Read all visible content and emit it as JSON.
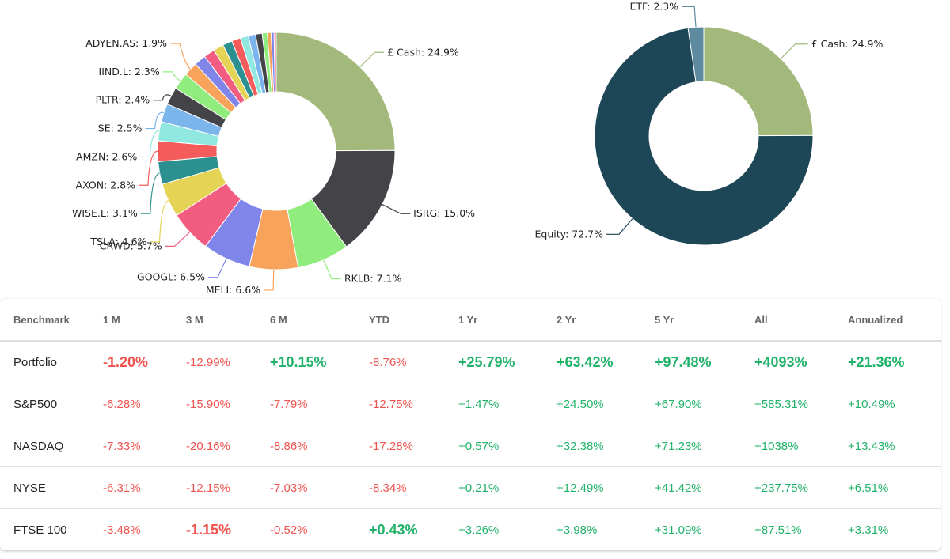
{
  "chart_data": [
    {
      "type": "pie",
      "donut": true,
      "slices": [
        {
          "label": "£ Cash: 24.9%",
          "value": 24.9,
          "color": "#a3b97b"
        },
        {
          "label": "ISRG: 15.0%",
          "value": 15.0,
          "color": "#434348"
        },
        {
          "label": "RKLB: 7.1%",
          "value": 7.1,
          "color": "#90ed7d"
        },
        {
          "label": "MELI: 6.6%",
          "value": 6.6,
          "color": "#f7a35c"
        },
        {
          "label": "GOOGL: 6.5%",
          "value": 6.5,
          "color": "#8085e9"
        },
        {
          "label": "CRWD: 5.7%",
          "value": 5.7,
          "color": "#f15c80"
        },
        {
          "label": "TSLA: 4.6%",
          "value": 4.6,
          "color": "#e4d354"
        },
        {
          "label": "WISE.L: 3.1%",
          "value": 3.1,
          "color": "#2b908f"
        },
        {
          "label": "AXON: 2.8%",
          "value": 2.8,
          "color": "#f45b5b"
        },
        {
          "label": "AMZN: 2.6%",
          "value": 2.6,
          "color": "#91e8e1"
        },
        {
          "label": "SE: 2.5%",
          "value": 2.5,
          "color": "#7cb5ec"
        },
        {
          "label": "PLTR: 2.4%",
          "value": 2.4,
          "color": "#434348"
        },
        {
          "label": "IIND.L: 2.3%",
          "value": 2.3,
          "color": "#90ed7d"
        },
        {
          "label": "ADYEN.AS: 1.9%",
          "value": 1.9,
          "color": "#f7a35c"
        },
        {
          "label": "",
          "value": 1.6,
          "color": "#8085e9"
        },
        {
          "label": "",
          "value": 1.5,
          "color": "#f15c80"
        },
        {
          "label": "",
          "value": 1.4,
          "color": "#e4d354"
        },
        {
          "label": "",
          "value": 1.3,
          "color": "#2b908f"
        },
        {
          "label": "",
          "value": 1.2,
          "color": "#f45b5b"
        },
        {
          "label": "",
          "value": 1.1,
          "color": "#91e8e1"
        },
        {
          "label": "",
          "value": 1.0,
          "color": "#7cb5ec"
        },
        {
          "label": "",
          "value": 0.9,
          "color": "#434348"
        },
        {
          "label": "",
          "value": 0.7,
          "color": "#90ed7d"
        },
        {
          "label": "",
          "value": 0.5,
          "color": "#f7a35c"
        },
        {
          "label": "",
          "value": 0.4,
          "color": "#8085e9"
        },
        {
          "label": "",
          "value": 0.3,
          "color": "#f15c80"
        }
      ]
    },
    {
      "type": "pie",
      "donut": true,
      "slices": [
        {
          "label": "£ Cash: 24.9%",
          "value": 24.9,
          "color": "#a3b97b"
        },
        {
          "label": "Equity: 72.7%",
          "value": 72.7,
          "color": "#1d4757"
        },
        {
          "label": "ETF: 2.3%",
          "value": 2.3,
          "color": "#5d8a9f"
        }
      ]
    }
  ],
  "table": {
    "headers": [
      "Benchmark",
      "1 M",
      "3 M",
      "6 M",
      "YTD",
      "1 Yr",
      "2 Yr",
      "5 Yr",
      "All",
      "Annualized"
    ],
    "rows": [
      {
        "name": "Portfolio",
        "cells": [
          {
            "text": "-1.20%",
            "tone": "neg",
            "bold": true
          },
          {
            "text": "-12.99%",
            "tone": "neg",
            "bold": false
          },
          {
            "text": "+10.15%",
            "tone": "pos",
            "bold": true
          },
          {
            "text": "-8.76%",
            "tone": "neg",
            "bold": false
          },
          {
            "text": "+25.79%",
            "tone": "pos",
            "bold": true
          },
          {
            "text": "+63.42%",
            "tone": "pos",
            "bold": true
          },
          {
            "text": "+97.48%",
            "tone": "pos",
            "bold": true
          },
          {
            "text": "+4093%",
            "tone": "pos",
            "bold": true
          },
          {
            "text": "+21.36%",
            "tone": "pos",
            "bold": true
          }
        ]
      },
      {
        "name": "S&P500",
        "cells": [
          {
            "text": "-6.28%",
            "tone": "neg",
            "bold": false
          },
          {
            "text": "-15.90%",
            "tone": "neg",
            "bold": false
          },
          {
            "text": "-7.79%",
            "tone": "neg",
            "bold": false
          },
          {
            "text": "-12.75%",
            "tone": "neg",
            "bold": false
          },
          {
            "text": "+1.47%",
            "tone": "pos",
            "bold": false
          },
          {
            "text": "+24.50%",
            "tone": "pos",
            "bold": false
          },
          {
            "text": "+67.90%",
            "tone": "pos",
            "bold": false
          },
          {
            "text": "+585.31%",
            "tone": "pos",
            "bold": false
          },
          {
            "text": "+10.49%",
            "tone": "pos",
            "bold": false
          }
        ]
      },
      {
        "name": "NASDAQ",
        "cells": [
          {
            "text": "-7.33%",
            "tone": "neg",
            "bold": false
          },
          {
            "text": "-20.16%",
            "tone": "neg",
            "bold": false
          },
          {
            "text": "-8.86%",
            "tone": "neg",
            "bold": false
          },
          {
            "text": "-17.28%",
            "tone": "neg",
            "bold": false
          },
          {
            "text": "+0.57%",
            "tone": "pos",
            "bold": false
          },
          {
            "text": "+32.38%",
            "tone": "pos",
            "bold": false
          },
          {
            "text": "+71.23%",
            "tone": "pos",
            "bold": false
          },
          {
            "text": "+1038%",
            "tone": "pos",
            "bold": false
          },
          {
            "text": "+13.43%",
            "tone": "pos",
            "bold": false
          }
        ]
      },
      {
        "name": "NYSE",
        "cells": [
          {
            "text": "-6.31%",
            "tone": "neg",
            "bold": false
          },
          {
            "text": "-12.15%",
            "tone": "neg",
            "bold": false
          },
          {
            "text": "-7.03%",
            "tone": "neg",
            "bold": false
          },
          {
            "text": "-8.34%",
            "tone": "neg",
            "bold": false
          },
          {
            "text": "+0.21%",
            "tone": "pos",
            "bold": false
          },
          {
            "text": "+12.49%",
            "tone": "pos",
            "bold": false
          },
          {
            "text": "+41.42%",
            "tone": "pos",
            "bold": false
          },
          {
            "text": "+237.75%",
            "tone": "pos",
            "bold": false
          },
          {
            "text": "+6.51%",
            "tone": "pos",
            "bold": false
          }
        ]
      },
      {
        "name": "FTSE 100",
        "cells": [
          {
            "text": "-3.48%",
            "tone": "neg",
            "bold": false
          },
          {
            "text": "-1.15%",
            "tone": "neg",
            "bold": true
          },
          {
            "text": "-0.52%",
            "tone": "neg",
            "bold": false
          },
          {
            "text": "+0.43%",
            "tone": "pos",
            "bold": true
          },
          {
            "text": "+3.26%",
            "tone": "pos",
            "bold": false
          },
          {
            "text": "+3.98%",
            "tone": "pos",
            "bold": false
          },
          {
            "text": "+31.09%",
            "tone": "pos",
            "bold": false
          },
          {
            "text": "+87.51%",
            "tone": "pos",
            "bold": false
          },
          {
            "text": "+3.31%",
            "tone": "pos",
            "bold": false
          }
        ]
      }
    ]
  }
}
